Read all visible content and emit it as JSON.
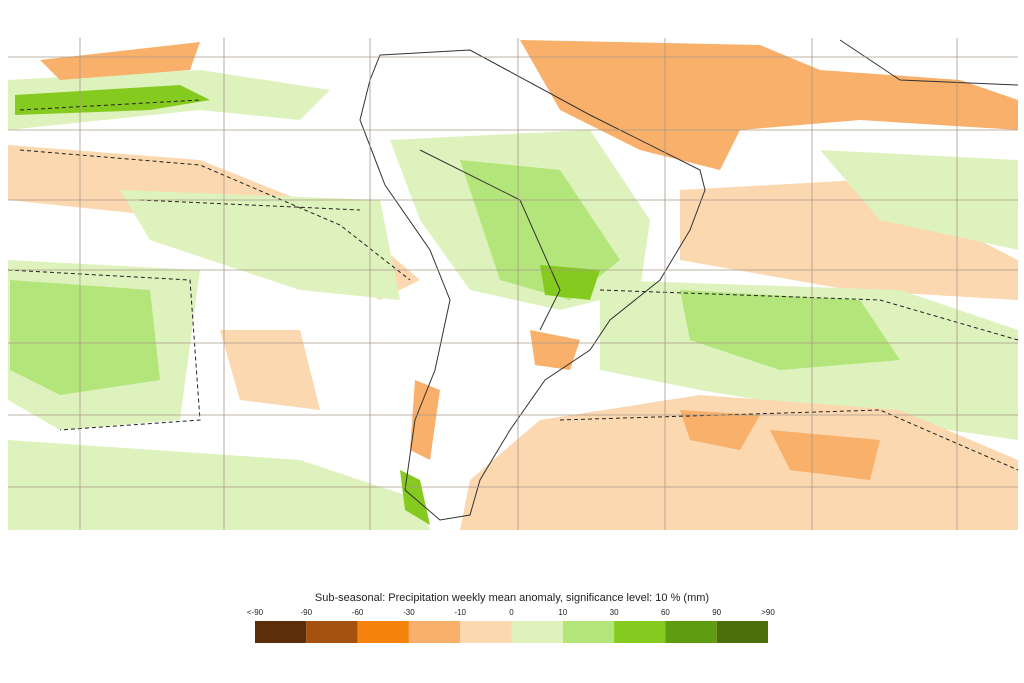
{
  "title": "Sub-seasonal: Precipitation weekly mean anomaly, significance level: 10 % (mm)",
  "colorbar": {
    "labels": [
      "<-90",
      "-90",
      "-60",
      "-30",
      "-10",
      "0",
      "10",
      "30",
      "60",
      "90",
      ">90"
    ],
    "colors": [
      "#5c2e0a",
      "#a6520e",
      "#f5820d",
      "#f8b06b",
      "#fbd8b0",
      "#def2bd",
      "#b3e57a",
      "#85cb1f",
      "#5f9c11",
      "#4d6e0a"
    ]
  }
}
